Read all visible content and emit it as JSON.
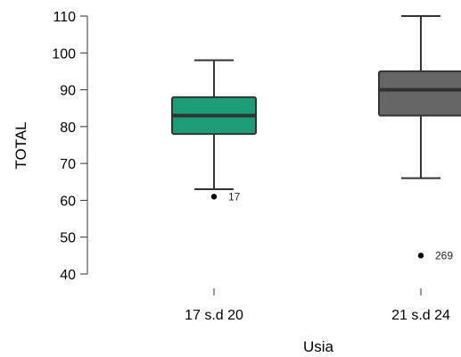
{
  "chart_data": {
    "type": "box",
    "xlabel": "Usia",
    "ylabel": "TOTAL",
    "ylim": [
      38,
      112
    ],
    "yticks": [
      40,
      50,
      60,
      70,
      80,
      90,
      100,
      110
    ],
    "grid": false,
    "categories": [
      "17 s.d 20",
      "21 s.d 24"
    ],
    "boxes": [
      {
        "category": "17 s.d 20",
        "whisker_low": 63,
        "q1": 78,
        "median": 83,
        "q3": 88,
        "whisker_high": 98,
        "color": "#1b9e77",
        "outliers": [
          {
            "value": 61,
            "label": "17"
          }
        ]
      },
      {
        "category": "21 s.d 24",
        "whisker_low": 66,
        "q1": 83,
        "median": 90,
        "q3": 95,
        "whisker_high": 110,
        "color": "#666666",
        "outliers": [
          {
            "value": 45,
            "label": "269"
          }
        ]
      }
    ]
  }
}
